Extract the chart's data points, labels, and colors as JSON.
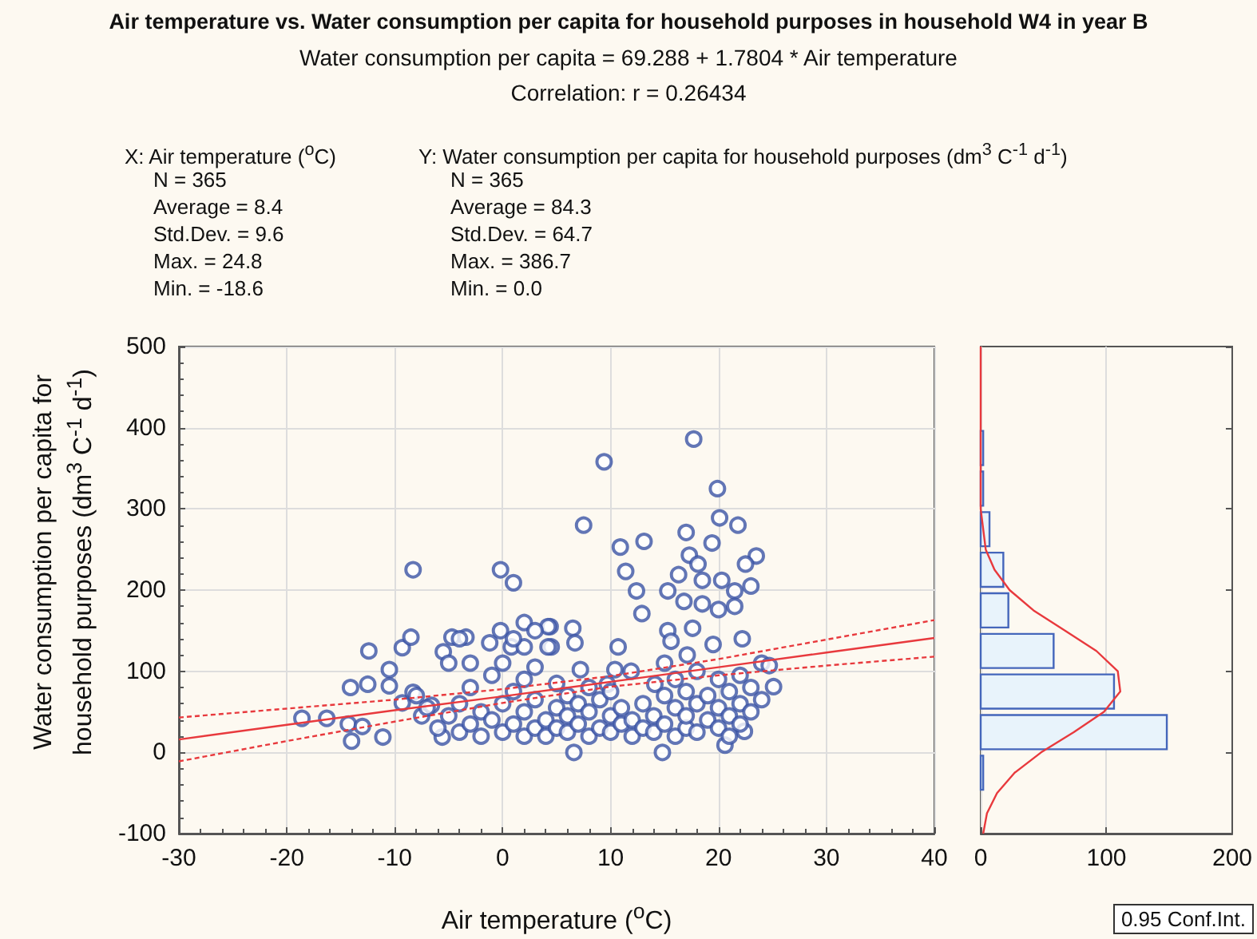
{
  "chart_data": [
    {
      "type": "scatter",
      "title": "Air temperature vs. Water consumption per capita for household purposes in household W4 in year B",
      "subtitle": "Water consumption per capita = 69.288 + 1.7804 * Air temperature",
      "xlabel": "Air temperature ($^{o}$C)",
      "ylabel": "Water consumption per capita for household purposes (dm$^{3}$ C$^{-1}$ d$^{-1}$)",
      "annotations": [
        "Correlation: r = 0.26434",
        "X:  Air temperature ($^{o}$C)",
        "N = 365",
        "Average = 8.4",
        "Std.Dev. = 9.6",
        "Max. = 24.8",
        "Min. = -18.6",
        "Y:  Water consumption per capita for household purposes (dm$^{3}$ C$^{-1}$ d$^{-1}$)",
        "N = 365",
        "Average = 84.3",
        "Std.Dev. = 64.7",
        "Max. = 386.7",
        "Min. = 0.0",
        "0.95 Conf.Int."
      ],
      "xlim": [
        -30,
        40
      ],
      "xticks": [
        -30,
        -20,
        -10,
        0,
        10,
        20,
        30,
        40
      ],
      "ylim": [
        -100,
        500
      ],
      "yticks": [
        -100,
        0,
        100,
        200,
        300,
        400,
        500
      ],
      "grid": true,
      "marker": "circle",
      "series": [
        {
          "color": "#3b54a5",
          "x": [
            -18.6,
            -16.3,
            -14.3,
            -14.0,
            -13.0,
            -11.1,
            -14.1,
            -12.5,
            -12.4,
            -10.5,
            -10.5,
            -9.3,
            -8.5,
            -8.3,
            -9.3,
            -8.3,
            -7.5,
            -6.6,
            -5.6,
            -5.5,
            -4.7,
            -3.4,
            -1.2,
            -0.2,
            1.0,
            -0.2,
            2.0,
            4.4,
            4.5,
            0.8,
            17.7,
            9.4,
            19.9,
            20.1,
            21.8,
            7.5,
            17.0,
            19.4,
            10.9,
            13.1,
            11.4,
            12.4,
            12.9,
            23.5,
            22.5,
            17.3,
            18.1,
            16.3,
            15.3,
            18.5,
            20.3,
            23.0,
            21.5,
            18.5,
            16.8,
            20.0,
            21.5,
            15.3,
            17.6,
            15.6,
            22.2,
            19.5,
            10.7,
            4.2,
            6.5,
            6.7,
            4.2,
            25.1,
            24.0,
            24.7,
            14.8,
            6.6,
            20.6,
            22.4,
            14.1,
            7.2,
            10.4,
            11.9,
            9.7,
            15.0,
            17.1,
            -6,
            -5,
            -4,
            -4,
            -3,
            -3,
            -2,
            -2,
            -1,
            -1,
            0,
            0,
            0,
            1,
            1,
            2,
            2,
            2,
            3,
            3,
            3,
            4,
            4,
            5,
            5,
            5,
            6,
            6,
            6,
            7,
            7,
            8,
            8,
            8,
            9,
            9,
            10,
            10,
            10,
            11,
            11,
            12,
            12,
            13,
            13,
            14,
            14,
            15,
            15,
            16,
            16,
            16,
            17,
            17,
            17,
            18,
            18,
            18,
            19,
            19,
            20,
            20,
            20,
            21,
            21,
            21,
            22,
            22,
            22,
            23,
            23,
            24,
            -7,
            -8,
            -5,
            -3,
            2,
            1,
            -4,
            3
          ],
          "values": [
            42,
            42,
            35,
            14,
            32,
            19,
            80,
            84,
            125,
            102,
            82,
            129,
            142,
            225,
            61,
            74,
            45,
            58,
            19,
            124,
            142,
            142,
            135,
            225,
            209,
            150,
            160,
            155,
            130,
            130,
            386,
            358,
            325,
            289,
            280,
            280,
            271,
            258,
            253,
            260,
            223,
            199,
            171,
            242,
            232,
            243,
            232,
            219,
            199,
            212,
            212,
            205,
            199,
            183,
            186,
            176,
            180,
            150,
            153,
            137,
            140,
            133,
            130,
            155,
            153,
            135,
            130,
            81,
            110,
            107,
            0,
            0,
            9,
            26,
            84,
            102,
            102,
            100,
            84,
            110,
            120,
            30,
            45,
            25,
            60,
            35,
            80,
            20,
            50,
            40,
            95,
            25,
            60,
            110,
            35,
            75,
            20,
            50,
            90,
            30,
            65,
            105,
            40,
            20,
            55,
            85,
            30,
            25,
            45,
            70,
            35,
            60,
            20,
            50,
            80,
            30,
            65,
            25,
            45,
            75,
            35,
            55,
            20,
            40,
            30,
            60,
            25,
            45,
            35,
            70,
            20,
            55,
            90,
            30,
            45,
            75,
            25,
            60,
            100,
            40,
            70,
            30,
            55,
            90,
            20,
            45,
            75,
            35,
            60,
            95,
            50,
            80,
            65,
            55,
            70,
            110,
            110,
            130,
            140,
            140,
            150
          ]
        },
        {
          "type": "line",
          "color": "#e8393d",
          "marker": "none",
          "x": [
            -30,
            -20,
            -10,
            0,
            10,
            20,
            30,
            40
          ],
          "values": [
            16,
            34,
            52,
            69,
            87,
            105,
            123,
            141
          ]
        },
        {
          "type": "line",
          "color": "#e8393d",
          "marker": "none",
          "line_style": "dashed",
          "x": [
            -30,
            -20,
            -10,
            0,
            10,
            20,
            30,
            40
          ],
          "values": [
            -11,
            14,
            38,
            61,
            81,
            95,
            107,
            118
          ]
        },
        {
          "type": "line",
          "color": "#e8393d",
          "marker": "none",
          "line_style": "dashed",
          "x": [
            -30,
            -20,
            -10,
            0,
            10,
            20,
            30,
            40
          ],
          "values": [
            43,
            54,
            65,
            78,
            94,
            115,
            139,
            163
          ]
        }
      ]
    },
    {
      "type": "histogram",
      "orientation": "horizontal",
      "bins": [
        -50,
        0,
        50,
        100,
        150,
        200,
        250,
        300,
        350,
        400
      ],
      "values": [
        2,
        148,
        106,
        58,
        22,
        18,
        7,
        2,
        2
      ],
      "color": "#e8f3fb",
      "xlim": [
        0,
        200
      ],
      "xticks": [
        0,
        100,
        200
      ],
      "ylim": [
        -100,
        500
      ],
      "yticks": [
        -100,
        0,
        100,
        200,
        300,
        400,
        500
      ],
      "grid": "x",
      "tick_labels": "x",
      "series": [
        {
          "type": "line",
          "color": "#e8393d",
          "values": [
            2,
            5,
            13,
            27,
            48,
            74,
            98,
            111,
            109,
            92,
            67,
            42,
            23,
            11,
            4,
            2,
            0,
            0,
            0,
            0
          ],
          "x": [
            -100,
            -75,
            -50,
            -25,
            0,
            25,
            50,
            75,
            100,
            125,
            150,
            175,
            200,
            225,
            250,
            275,
            300,
            350,
            400,
            500
          ]
        }
      ]
    }
  ]
}
